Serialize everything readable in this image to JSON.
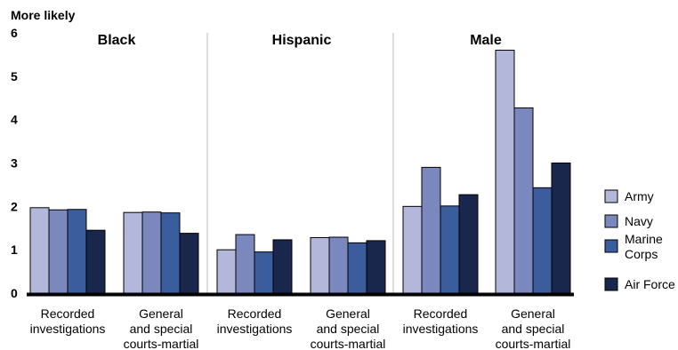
{
  "chart_data": {
    "type": "bar",
    "ylabel": "More likely",
    "ylim": [
      0,
      6
    ],
    "yticks": [
      "0",
      "1",
      "2",
      "3",
      "4",
      "5",
      "6"
    ],
    "grid": false,
    "legend_position": "right",
    "panels": [
      {
        "title": "Black",
        "categories": [
          [
            "Recorded",
            "investigations"
          ],
          [
            "General",
            "and special",
            "courts-martial"
          ]
        ],
        "series": [
          {
            "name": "Army",
            "values": [
              1.97,
              1.86
            ]
          },
          {
            "name": "Navy",
            "values": [
              1.92,
              1.87
            ]
          },
          {
            "name": "Marine Corps",
            "values": [
              1.93,
              1.85
            ]
          },
          {
            "name": "Air Force",
            "values": [
              1.45,
              1.38
            ]
          }
        ]
      },
      {
        "title": "Hispanic",
        "categories": [
          [
            "Recorded",
            "investigations"
          ],
          [
            "General",
            "and special",
            "courts-martial"
          ]
        ],
        "series": [
          {
            "name": "Army",
            "values": [
              1.0,
              1.28
            ]
          },
          {
            "name": "Navy",
            "values": [
              1.35,
              1.29
            ]
          },
          {
            "name": "Marine Corps",
            "values": [
              0.95,
              1.16
            ]
          },
          {
            "name": "Air Force",
            "values": [
              1.23,
              1.21
            ]
          }
        ]
      },
      {
        "title": "Male",
        "categories": [
          [
            "Recorded",
            "investigations"
          ],
          [
            "General",
            "and special",
            "courts-martial"
          ]
        ],
        "series": [
          {
            "name": "Army",
            "values": [
              2.0,
              5.6
            ]
          },
          {
            "name": "Navy",
            "values": [
              2.9,
              4.27
            ]
          },
          {
            "name": "Marine Corps",
            "values": [
              2.01,
              2.43
            ]
          },
          {
            "name": "Air Force",
            "values": [
              2.27,
              3.0
            ]
          }
        ]
      }
    ],
    "legend": [
      {
        "label": [
          "Army"
        ],
        "color": "#b3b8db"
      },
      {
        "label": [
          "Navy"
        ],
        "color": "#7b88bd"
      },
      {
        "label": [
          "Marine",
          "Corps"
        ],
        "color": "#3b5d9e"
      },
      {
        "label": [
          "Air Force"
        ],
        "color": "#19274c"
      }
    ]
  }
}
